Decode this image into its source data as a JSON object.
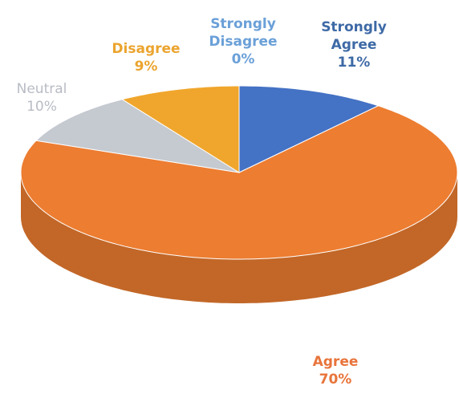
{
  "chart_data": {
    "type": "pie3d",
    "categories": [
      "Strongly Agree",
      "Agree",
      "Neutral",
      "Disagree",
      "Strongly Disagree"
    ],
    "values": [
      11,
      70,
      10,
      9,
      0
    ],
    "value_labels": [
      "11%",
      "70%",
      "10%",
      "9%",
      "0%"
    ],
    "colors": [
      "#4472c4",
      "#ed7d31",
      "#c5c9d0",
      "#f0a62c",
      "#5b9bd5"
    ],
    "label_colors": [
      "#3e6aa6",
      "#e8743b",
      "#b8bcc4",
      "#eba42e",
      "#6aa0d8"
    ]
  }
}
